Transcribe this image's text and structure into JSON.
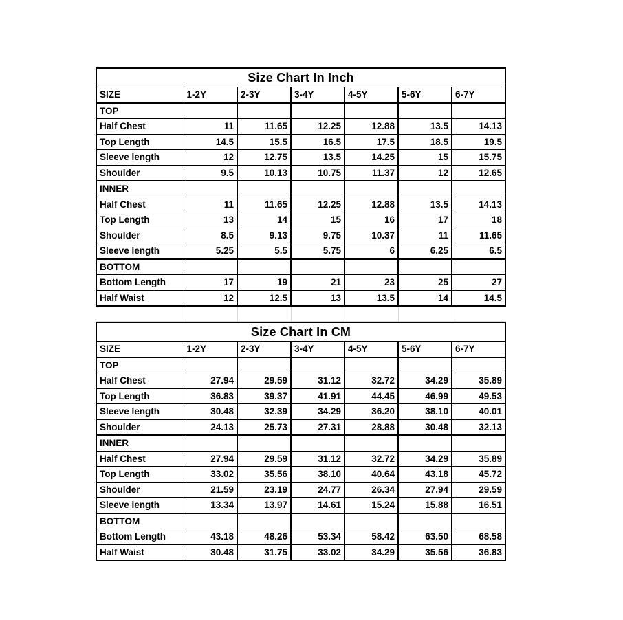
{
  "page": {
    "background": "#ffffff",
    "colors": {
      "table_border": "#000000",
      "text": "#000000",
      "faint_gridline": "#d9d9d9"
    }
  },
  "chart_data": [
    {
      "type": "table",
      "title": "Size Chart In Inch",
      "unit": "inch",
      "columns": [
        "SIZE",
        "1-2Y",
        "2-3Y",
        "3-4Y",
        "4-5Y",
        "5-6Y",
        "6-7Y"
      ],
      "rows": [
        {
          "section": true,
          "label": "TOP",
          "values": [
            "",
            "",
            "",
            "",
            "",
            ""
          ]
        },
        {
          "section": false,
          "label": "Half Chest",
          "values": [
            "11",
            "11.65",
            "12.25",
            "12.88",
            "13.5",
            "14.13"
          ]
        },
        {
          "section": false,
          "label": "Top Length",
          "values": [
            "14.5",
            "15.5",
            "16.5",
            "17.5",
            "18.5",
            "19.5"
          ]
        },
        {
          "section": false,
          "label": "Sleeve length",
          "values": [
            "12",
            "12.75",
            "13.5",
            "14.25",
            "15",
            "15.75"
          ]
        },
        {
          "section": false,
          "label": "Shoulder",
          "values": [
            "9.5",
            "10.13",
            "10.75",
            "11.37",
            "12",
            "12.65"
          ]
        },
        {
          "section": true,
          "label": "INNER",
          "values": [
            "",
            "",
            "",
            "",
            "",
            ""
          ]
        },
        {
          "section": false,
          "label": "Half Chest",
          "values": [
            "11",
            "11.65",
            "12.25",
            "12.88",
            "13.5",
            "14.13"
          ]
        },
        {
          "section": false,
          "label": "Top Length",
          "values": [
            "13",
            "14",
            "15",
            "16",
            "17",
            "18"
          ]
        },
        {
          "section": false,
          "label": "Shoulder",
          "values": [
            "8.5",
            "9.13",
            "9.75",
            "10.37",
            "11",
            "11.65"
          ]
        },
        {
          "section": false,
          "label": "Sleeve length",
          "values": [
            "5.25",
            "5.5",
            "5.75",
            "6",
            "6.25",
            "6.5"
          ]
        },
        {
          "section": true,
          "label": "BOTTOM",
          "values": [
            "",
            "",
            "",
            "",
            "",
            ""
          ]
        },
        {
          "section": false,
          "label": "Bottom Length",
          "values": [
            "17",
            "19",
            "21",
            "23",
            "25",
            "27"
          ]
        },
        {
          "section": false,
          "label": "Half Waist",
          "values": [
            "12",
            "12.5",
            "13",
            "13.5",
            "14",
            "14.5"
          ]
        }
      ]
    },
    {
      "type": "table",
      "title": "Size Chart In CM",
      "unit": "cm",
      "columns": [
        "SIZE",
        "1-2Y",
        "2-3Y",
        "3-4Y",
        "4-5Y",
        "5-6Y",
        "6-7Y"
      ],
      "rows": [
        {
          "section": true,
          "label": "TOP",
          "values": [
            "",
            "",
            "",
            "",
            "",
            ""
          ]
        },
        {
          "section": false,
          "label": "Half Chest",
          "values": [
            "27.94",
            "29.59",
            "31.12",
            "32.72",
            "34.29",
            "35.89"
          ]
        },
        {
          "section": false,
          "label": "Top Length",
          "values": [
            "36.83",
            "39.37",
            "41.91",
            "44.45",
            "46.99",
            "49.53"
          ]
        },
        {
          "section": false,
          "label": "Sleeve length",
          "values": [
            "30.48",
            "32.39",
            "34.29",
            "36.20",
            "38.10",
            "40.01"
          ]
        },
        {
          "section": false,
          "label": "Shoulder",
          "values": [
            "24.13",
            "25.73",
            "27.31",
            "28.88",
            "30.48",
            "32.13"
          ]
        },
        {
          "section": true,
          "label": "INNER",
          "values": [
            "",
            "",
            "",
            "",
            "",
            ""
          ]
        },
        {
          "section": false,
          "label": "Half Chest",
          "values": [
            "27.94",
            "29.59",
            "31.12",
            "32.72",
            "34.29",
            "35.89"
          ]
        },
        {
          "section": false,
          "label": "Top Length",
          "values": [
            "33.02",
            "35.56",
            "38.10",
            "40.64",
            "43.18",
            "45.72"
          ]
        },
        {
          "section": false,
          "label": "Shoulder",
          "values": [
            "21.59",
            "23.19",
            "24.77",
            "26.34",
            "27.94",
            "29.59"
          ]
        },
        {
          "section": false,
          "label": "Sleeve length",
          "values": [
            "13.34",
            "13.97",
            "14.61",
            "15.24",
            "15.88",
            "16.51"
          ]
        },
        {
          "section": true,
          "label": "BOTTOM",
          "values": [
            "",
            "",
            "",
            "",
            "",
            ""
          ]
        },
        {
          "section": false,
          "label": "Bottom Length",
          "values": [
            "43.18",
            "48.26",
            "53.34",
            "58.42",
            "63.50",
            "68.58"
          ]
        },
        {
          "section": false,
          "label": "Half Waist",
          "values": [
            "30.48",
            "31.75",
            "33.02",
            "34.29",
            "35.56",
            "36.83"
          ]
        }
      ]
    }
  ]
}
